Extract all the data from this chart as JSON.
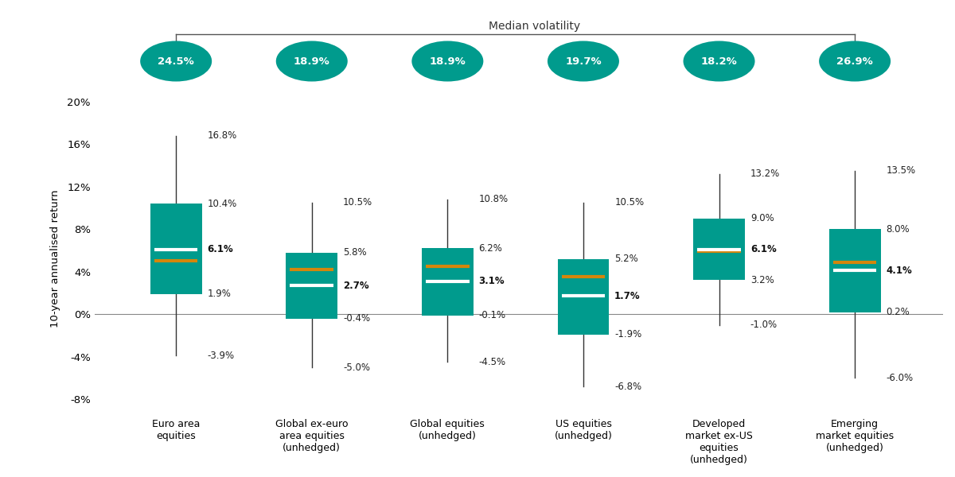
{
  "categories": [
    "Euro area\nequities",
    "Global ex-euro\narea equities\n(unhedged)",
    "Global equities\n(unhedged)",
    "US equities\n(unhedged)",
    "Developed\nmarket ex-US\nequities\n(unhedged)",
    "Emerging\nmarket equities\n(unhedged)"
  ],
  "whisker_low": [
    -3.9,
    -5.0,
    -4.5,
    -6.8,
    -1.0,
    -6.0
  ],
  "whisker_high": [
    16.8,
    10.5,
    10.8,
    10.5,
    13.2,
    13.5
  ],
  "box_low": [
    1.9,
    -0.4,
    -0.1,
    -1.9,
    3.2,
    0.2
  ],
  "box_high": [
    10.4,
    5.8,
    6.2,
    5.2,
    9.0,
    8.0
  ],
  "median_white": [
    6.1,
    2.7,
    3.1,
    1.7,
    6.1,
    4.1
  ],
  "mean_orange": [
    5.0,
    4.2,
    4.5,
    3.5,
    5.9,
    4.9
  ],
  "volatility": [
    "24.5%",
    "18.9%",
    "18.9%",
    "19.7%",
    "18.2%",
    "26.9%"
  ],
  "box_color": "#009B8D",
  "whisker_color": "#333333",
  "median_line_color": "#FFFFFF",
  "mean_line_color": "#D4860B",
  "volatility_bubble_color": "#009B8D",
  "volatility_text_color": "#FFFFFF",
  "ylabel": "10-year annualised return",
  "ylim": [
    -9.5,
    18
  ],
  "yticks": [
    -8,
    -4,
    0,
    4,
    8,
    12,
    16,
    20
  ],
  "ytick_labels": [
    "-8%",
    "-4%",
    "0%",
    "4%",
    "8%",
    "12%",
    "16%",
    "20%"
  ],
  "median_volatility_label": "Median volatility",
  "background_color": "#FFFFFF",
  "annotation_fontsize": 8.5,
  "bar_width": 0.38
}
